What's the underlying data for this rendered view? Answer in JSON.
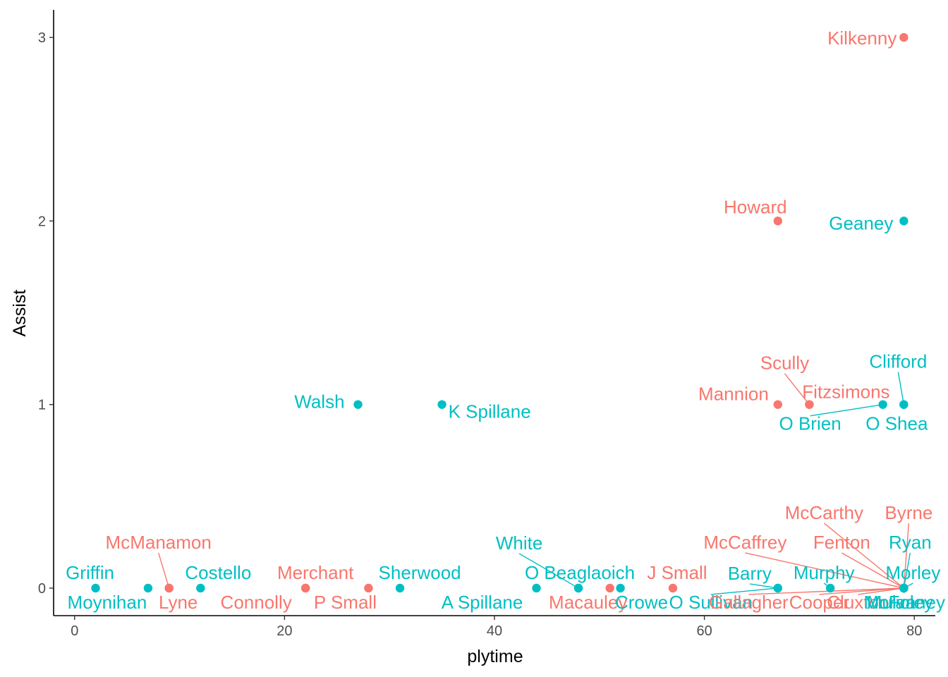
{
  "chart_data": {
    "type": "scatter",
    "xlabel": "plytime",
    "ylabel": "Assist",
    "xlim": [
      -2,
      82
    ],
    "ylim": [
      -0.15,
      3.15
    ],
    "xticks": [
      0,
      20,
      40,
      60,
      80
    ],
    "yticks": [
      0,
      1,
      2,
      3
    ],
    "grid": false,
    "legend": "none",
    "group_colors": {
      "a": "#F8766D",
      "b": "#00BFC4"
    },
    "points": [
      {
        "name": "Kilkenny",
        "x": 79,
        "y": 3,
        "group": "a"
      },
      {
        "name": "Howard",
        "x": 67,
        "y": 2,
        "group": "a"
      },
      {
        "name": "Geaney",
        "x": 79,
        "y": 2,
        "group": "b"
      },
      {
        "name": "Walsh",
        "x": 27,
        "y": 1,
        "group": "b"
      },
      {
        "name": "K Spillane",
        "x": 35,
        "y": 1,
        "group": "b"
      },
      {
        "name": "Mannion",
        "x": 67,
        "y": 1,
        "group": "a"
      },
      {
        "name": "Scully",
        "x": 70,
        "y": 1,
        "group": "a"
      },
      {
        "name": "Fitzsimons",
        "x": 70,
        "y": 1,
        "group": "a"
      },
      {
        "name": "O Brien",
        "x": 77,
        "y": 1,
        "group": "b"
      },
      {
        "name": "Clifford",
        "x": 79,
        "y": 1,
        "group": "b"
      },
      {
        "name": "O Shea",
        "x": 79,
        "y": 1,
        "group": "b"
      },
      {
        "name": "Griffin",
        "x": 2,
        "y": 0,
        "group": "b"
      },
      {
        "name": "Moynihan",
        "x": 7,
        "y": 0,
        "group": "b"
      },
      {
        "name": "McManamon",
        "x": 9,
        "y": 0,
        "group": "a"
      },
      {
        "name": "Lyne",
        "x": 9,
        "y": 0,
        "group": "a"
      },
      {
        "name": "Costello",
        "x": 12,
        "y": 0,
        "group": "b"
      },
      {
        "name": "Connolly",
        "x": 22,
        "y": 0,
        "group": "a"
      },
      {
        "name": "Merchant",
        "x": 22,
        "y": 0,
        "group": "a"
      },
      {
        "name": "P Small",
        "x": 28,
        "y": 0,
        "group": "a"
      },
      {
        "name": "Sherwood",
        "x": 31,
        "y": 0,
        "group": "b"
      },
      {
        "name": "A Spillane",
        "x": 44,
        "y": 0,
        "group": "b"
      },
      {
        "name": "White",
        "x": 48,
        "y": 0,
        "group": "b"
      },
      {
        "name": "O Beaglaoich",
        "x": 48,
        "y": 0,
        "group": "b"
      },
      {
        "name": "Macauley",
        "x": 51,
        "y": 0,
        "group": "a"
      },
      {
        "name": "Crowe",
        "x": 52,
        "y": 0,
        "group": "b"
      },
      {
        "name": "J Small",
        "x": 57,
        "y": 0,
        "group": "a"
      },
      {
        "name": "O Sullivan",
        "x": 67,
        "y": 0,
        "group": "b"
      },
      {
        "name": "Barry",
        "x": 67,
        "y": 0,
        "group": "b"
      },
      {
        "name": "Gallagher",
        "x": 79,
        "y": 0,
        "group": "a"
      },
      {
        "name": "Murphy",
        "x": 72,
        "y": 0,
        "group": "b"
      },
      {
        "name": "Cooper",
        "x": 79,
        "y": 0,
        "group": "a"
      },
      {
        "name": "Cluxton",
        "x": 79,
        "y": 0,
        "group": "a"
      },
      {
        "name": "McCarthy",
        "x": 79,
        "y": 0,
        "group": "a"
      },
      {
        "name": "Byrne",
        "x": 79,
        "y": 0,
        "group": "a"
      },
      {
        "name": "McCaffrey",
        "x": 79,
        "y": 0,
        "group": "a"
      },
      {
        "name": "Fenton",
        "x": 79,
        "y": 0,
        "group": "a"
      },
      {
        "name": "Ryan",
        "x": 79,
        "y": 0,
        "group": "b"
      },
      {
        "name": "Morley",
        "x": 79,
        "y": 0,
        "group": "b"
      },
      {
        "name": "Moran",
        "x": 79,
        "y": 0,
        "group": "b"
      },
      {
        "name": "Foley",
        "x": 79,
        "y": 0,
        "group": "b"
      },
      {
        "name": "Mulvaney",
        "x": 79,
        "y": 0,
        "group": "b"
      }
    ]
  }
}
